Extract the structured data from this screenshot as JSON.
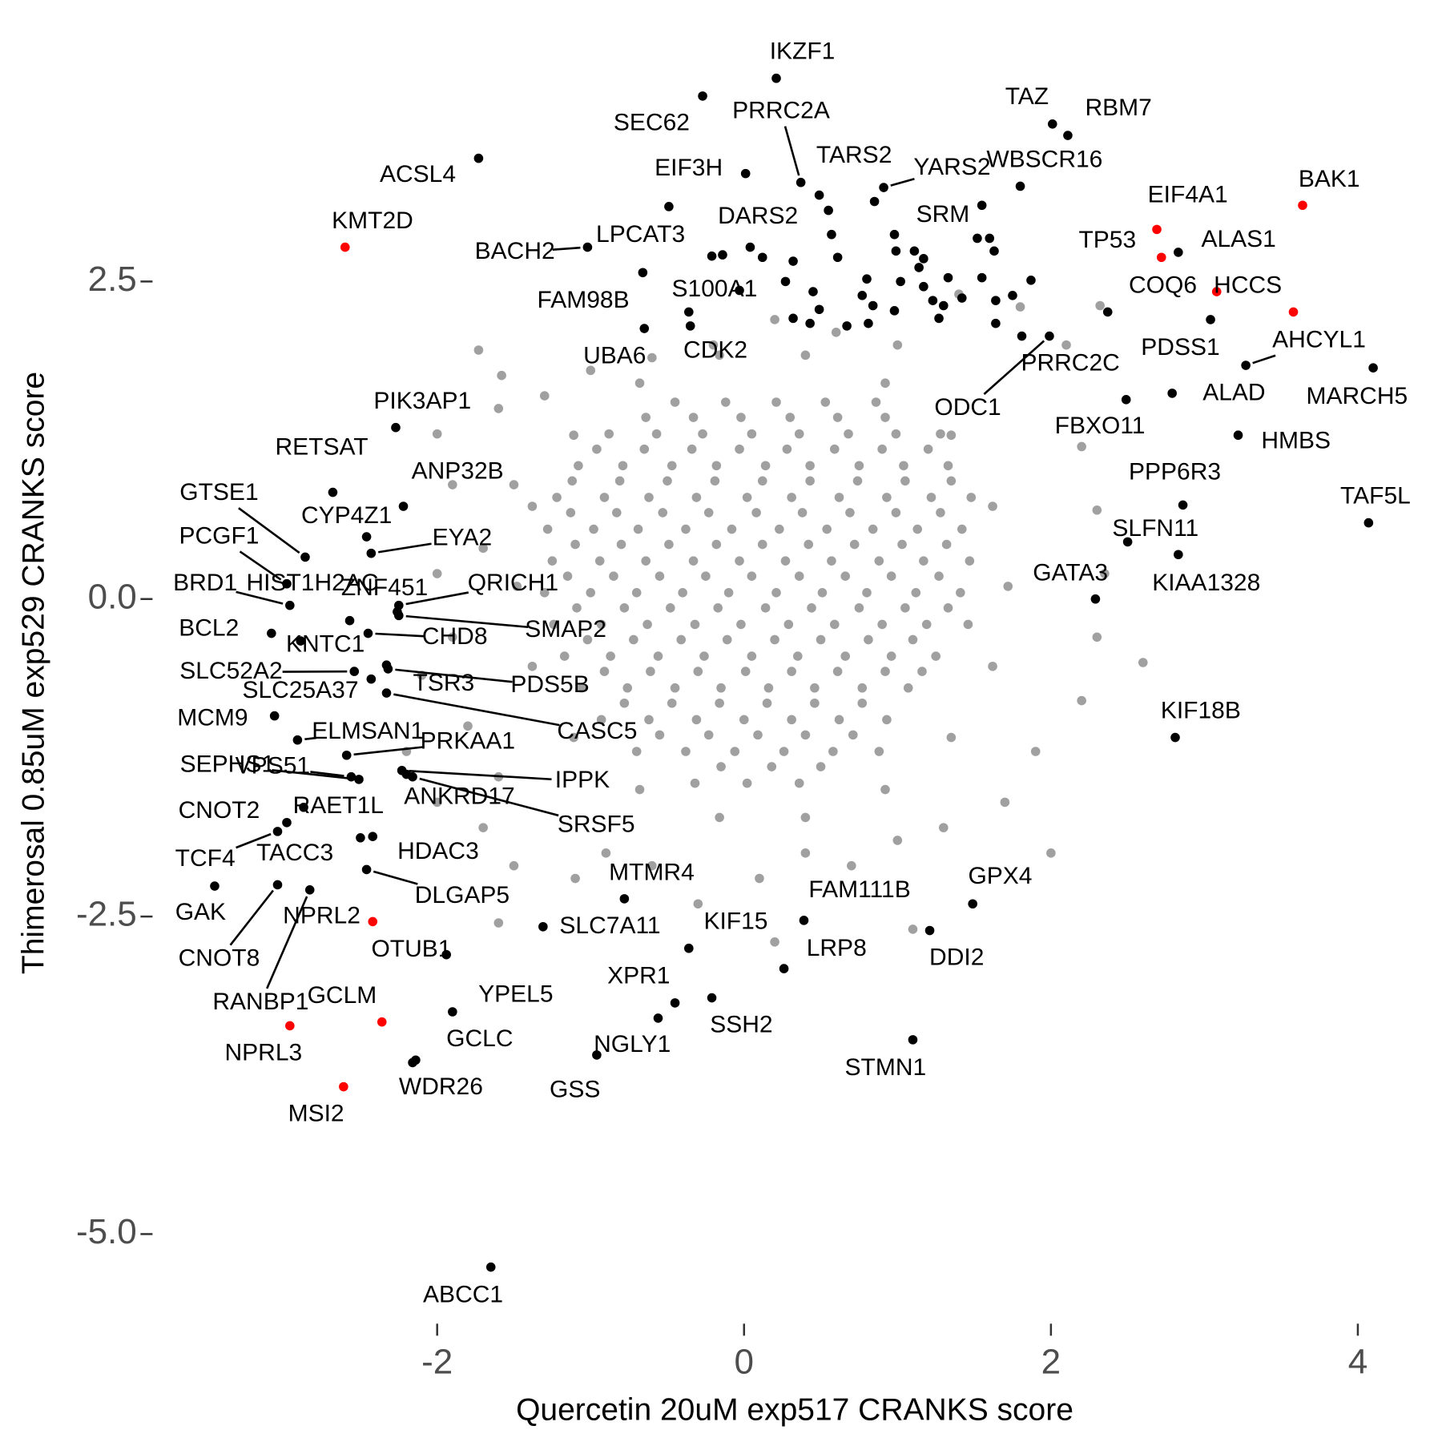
{
  "chart_data": {
    "type": "scatter",
    "xlabel": "Quercetin 20uM exp517 CRANKS score",
    "ylabel": "Thimerosal 0.85uM exp529 CRANKS score",
    "xlim": [
      -3.855,
      4.428
    ],
    "ylim": [
      -5.691,
      4.498
    ],
    "xticks": [
      -2,
      0,
      2,
      4
    ],
    "yticks": [
      {
        "value": 2.5,
        "label": "2.5"
      },
      {
        "value": 0,
        "label": "0.0"
      },
      {
        "value": -2.5,
        "label": "-2.5"
      },
      {
        "value": -5,
        "label": "-5.0"
      }
    ],
    "grid": false,
    "series": [
      {
        "color": "#a0a0a0",
        "x": [
          -1.73,
          -1.58,
          -1.6,
          -2.0,
          -1.9,
          -1.5,
          -1.7,
          -2.0,
          -1.9,
          -2.1,
          -1.8,
          -1.6,
          -1.7,
          -1.5,
          -1.6,
          -1.1,
          -0.9,
          -0.6,
          -0.3,
          0.1,
          0.4,
          0.7,
          1.0,
          1.3,
          1.7,
          1.9,
          2.2,
          2.3,
          2.35,
          2.3,
          2.2,
          2.32,
          2.1,
          1.8,
          1.4,
          1.0,
          0.6,
          0.2,
          -0.2,
          -0.6,
          -1.0,
          -1.3,
          -2.2,
          -2.0,
          2.0,
          1.1,
          0.2,
          2.6,
          1.72,
          1.62,
          1.35,
          0.92,
          0.4,
          -0.16,
          -0.68,
          -1.11,
          -1.38,
          -1.48,
          -1.38,
          -1.11,
          -0.68,
          -0.16,
          0.4,
          0.92,
          1.35,
          1.62,
          -0.45,
          -0.12,
          0.21,
          0.53,
          0.86,
          -0.88,
          -0.57,
          -0.27,
          0.05,
          0.36,
          0.68,
          0.99,
          1.28,
          -1.08,
          -0.79,
          -0.47,
          -0.18,
          0.14,
          0.43,
          0.75,
          1.04,
          1.33,
          -1.22,
          -0.91,
          -0.62,
          -0.31,
          0.02,
          0.31,
          0.62,
          0.93,
          1.22,
          1.48,
          -1.28,
          -0.98,
          -0.69,
          -0.38,
          -0.08,
          0.23,
          0.54,
          0.84,
          1.13,
          1.42,
          -1.25,
          -0.94,
          -0.64,
          -0.33,
          -0.03,
          0.27,
          0.57,
          0.88,
          1.17,
          1.47,
          -1.3,
          -1.0,
          -0.7,
          -0.4,
          -0.1,
          0.21,
          0.51,
          0.8,
          1.12,
          1.41,
          -1.24,
          -0.93,
          -0.63,
          -0.32,
          -0.02,
          0.29,
          0.59,
          0.9,
          1.19,
          1.46,
          -1.17,
          -0.87,
          -0.56,
          -0.26,
          0.05,
          0.35,
          0.66,
          0.96,
          1.25,
          -1.06,
          -0.76,
          -0.45,
          -0.15,
          0.16,
          0.46,
          0.77,
          1.07,
          -0.93,
          -0.62,
          -0.31,
          0.0,
          0.31,
          0.62,
          0.93,
          -0.7,
          -0.38,
          -0.06,
          0.26,
          0.58,
          0.88,
          -0.32,
          0.02,
          0.36,
          -0.64,
          -0.33,
          -0.02,
          0.3,
          0.61,
          0.92,
          -0.96,
          -0.65,
          -0.34,
          -0.03,
          0.28,
          0.59,
          0.9,
          1.2,
          -1.12,
          -0.81,
          -0.5,
          -0.19,
          0.12,
          0.43,
          0.74,
          1.05,
          1.35,
          -1.13,
          -0.83,
          -0.53,
          -0.23,
          0.08,
          0.38,
          0.69,
          0.99,
          1.28,
          -1.1,
          -0.8,
          -0.49,
          -0.18,
          0.12,
          0.42,
          0.72,
          1.03,
          1.32,
          -1.15,
          -0.85,
          -0.55,
          -0.25,
          0.05,
          0.36,
          0.66,
          0.96,
          1.27,
          -1.09,
          -0.78,
          -0.48,
          -0.17,
          0.14,
          0.44,
          0.75,
          1.05,
          1.33,
          -1.02,
          -0.72,
          -0.41,
          -0.11,
          0.2,
          0.5,
          0.81,
          1.1,
          -0.91,
          -0.61,
          -0.3,
          0.01,
          0.31,
          0.61,
          0.92,
          1.16,
          -0.78,
          -0.47,
          -0.16,
          0.15,
          0.46,
          0.77,
          -0.55,
          -0.23,
          0.09,
          0.4,
          0.71,
          -0.15,
          0.18,
          0.5
        ],
        "y": [
          1.96,
          1.76,
          1.5,
          1.3,
          0.9,
          0.9,
          0.4,
          0.2,
          -0.3,
          -0.6,
          -1.0,
          -1.4,
          -1.8,
          -2.1,
          -2.55,
          -2.2,
          -2.0,
          -2.1,
          -2.4,
          -2.2,
          -2.0,
          -2.1,
          -1.9,
          -1.8,
          -1.6,
          -1.2,
          -0.8,
          -0.3,
          0.2,
          0.7,
          1.2,
          2.31,
          2.0,
          2.3,
          2.4,
          2.0,
          2.1,
          2.2,
          2.0,
          1.9,
          1.8,
          1.6,
          -1.2,
          -1.6,
          -2.0,
          -2.6,
          -2.7,
          -0.5,
          0.1,
          0.73,
          1.29,
          1.7,
          1.92,
          1.92,
          1.7,
          1.29,
          0.73,
          0.1,
          -0.53,
          -1.09,
          -1.5,
          -1.72,
          -1.72,
          -1.5,
          -1.09,
          -0.53,
          1.55,
          1.55,
          1.55,
          1.55,
          1.55,
          1.3,
          1.3,
          1.3,
          1.3,
          1.3,
          1.3,
          1.3,
          1.3,
          1.05,
          1.05,
          1.05,
          1.05,
          1.05,
          1.05,
          1.05,
          1.05,
          1.05,
          0.8,
          0.8,
          0.8,
          0.8,
          0.8,
          0.8,
          0.8,
          0.8,
          0.8,
          0.8,
          0.55,
          0.55,
          0.55,
          0.55,
          0.55,
          0.55,
          0.55,
          0.55,
          0.55,
          0.55,
          0.3,
          0.3,
          0.3,
          0.3,
          0.3,
          0.3,
          0.3,
          0.3,
          0.3,
          0.3,
          0.05,
          0.05,
          0.05,
          0.05,
          0.05,
          0.05,
          0.05,
          0.05,
          0.05,
          0.05,
          -0.2,
          -0.2,
          -0.2,
          -0.2,
          -0.2,
          -0.2,
          -0.2,
          -0.2,
          -0.2,
          -0.2,
          -0.45,
          -0.45,
          -0.45,
          -0.45,
          -0.45,
          -0.45,
          -0.45,
          -0.45,
          -0.45,
          -0.7,
          -0.7,
          -0.7,
          -0.7,
          -0.7,
          -0.7,
          -0.7,
          -0.7,
          -0.95,
          -0.95,
          -0.95,
          -0.95,
          -0.95,
          -0.95,
          -0.95,
          -1.2,
          -1.2,
          -1.2,
          -1.2,
          -1.2,
          -1.2,
          -1.45,
          -1.45,
          -1.45,
          1.43,
          1.43,
          1.43,
          1.43,
          1.43,
          1.43,
          1.18,
          1.18,
          1.18,
          1.18,
          1.18,
          1.18,
          1.18,
          1.18,
          0.93,
          0.93,
          0.93,
          0.93,
          0.93,
          0.93,
          0.93,
          0.93,
          0.93,
          0.68,
          0.68,
          0.68,
          0.68,
          0.68,
          0.68,
          0.68,
          0.68,
          0.68,
          0.43,
          0.43,
          0.43,
          0.43,
          0.43,
          0.43,
          0.43,
          0.43,
          0.43,
          0.18,
          0.18,
          0.18,
          0.18,
          0.18,
          0.18,
          0.18,
          0.18,
          0.18,
          -0.07,
          -0.07,
          -0.07,
          -0.07,
          -0.07,
          -0.07,
          -0.07,
          -0.07,
          -0.07,
          -0.32,
          -0.32,
          -0.32,
          -0.32,
          -0.32,
          -0.32,
          -0.32,
          -0.32,
          -0.57,
          -0.57,
          -0.57,
          -0.57,
          -0.57,
          -0.57,
          -0.57,
          -0.57,
          -0.82,
          -0.82,
          -0.82,
          -0.82,
          -0.82,
          -0.82,
          -1.07,
          -1.07,
          -1.07,
          -1.07,
          -1.07,
          -1.32,
          -1.32,
          -1.32
        ]
      },
      {
        "color": "#000000",
        "x": [
          -0.21,
          -0.14,
          0.12,
          0.27,
          0.32,
          0.45,
          0.55,
          0.57,
          0.61,
          0.8,
          0.77,
          0.81,
          0.67,
          0.99,
          1.02,
          1.14,
          1.17,
          1.33,
          1.3,
          1.42,
          1.52,
          1.55,
          1.63,
          1.64,
          1.75,
          1.87,
          1.81,
          1.55,
          1.27,
          0.32,
          0.43,
          0.98,
          0.49,
          1.17,
          1.6,
          -0.36,
          0.85,
          1.11,
          1.23,
          1.64,
          0.84
        ],
        "y": [
          2.7,
          2.71,
          2.69,
          2.5,
          2.66,
          2.42,
          3.06,
          2.87,
          2.69,
          2.52,
          2.39,
          2.17,
          2.15,
          2.74,
          2.5,
          2.61,
          2.68,
          2.53,
          2.31,
          2.37,
          2.84,
          2.53,
          2.74,
          2.35,
          2.39,
          2.51,
          2.07,
          3.1,
          2.21,
          2.21,
          2.17,
          2.27,
          2.28,
          2.46,
          2.84,
          2.26,
          3.13,
          2.74,
          2.35,
          2.17,
          2.31
        ]
      },
      {
        "color": "#000000",
        "labels": [
          "IKZF1",
          "SEC62",
          "PRRC2A",
          "TAZ",
          "RBM7",
          "ACSL4",
          "EIF3H",
          "TARS2",
          "YARS2",
          "WBSCR16",
          "DARS2",
          "SRM",
          "ALAS1",
          "BACH2",
          "LPCAT3",
          "FAM98B",
          "S100A1",
          "UBA6",
          "CDK2",
          "PDSS1",
          "AHCYL1",
          "PRRC2C",
          "MARCH5",
          "ALAD",
          "ODC1",
          "PIK3AP1",
          "FBXO11",
          "HMBS",
          "RETSAT",
          "ANP32B",
          "PPP6R3",
          "TAF5L",
          "GTSE1",
          "CYP4Z1",
          "PCGF1",
          "EYA2",
          "SLFN11",
          "KIAA1328",
          "GATA3",
          "BRD1",
          "HIST1H2AC",
          "ZNF451",
          "QRICH1",
          "SMAP2",
          "BCL2",
          "CHD8",
          "KNTC1",
          "SLC52A2",
          "SLC25A37",
          "TSR3",
          "PDS5B",
          "CASC5",
          "MCM9",
          "ELMSAN1",
          "PRKAA1",
          "SEPHS1",
          "VPS51",
          "IPPK",
          "ANKRD17",
          "SRSF5",
          "CNOT2",
          "RAET1L",
          "HDAC3",
          "TACC3",
          "TCF4",
          "DLGAP5",
          "GAK",
          "CNOT8",
          "RANBP1",
          "OTUB1",
          "SLC7A11",
          "MTMR4",
          "KIF15",
          "FAM111B",
          "GPX4",
          "DDI2",
          "LRP8",
          "XPR1",
          "SSH2",
          "YPEL5",
          "NGLY1",
          "GCLC",
          "WDR26",
          "STMN1",
          "GSS",
          "ABCC1",
          "KIF18B"
        ],
        "x": [
          0.21,
          -0.27,
          0.37,
          2.01,
          2.11,
          -1.73,
          0.01,
          0.49,
          0.91,
          1.8,
          0.04,
          0.98,
          2.83,
          -1.02,
          -0.49,
          -0.66,
          -0.03,
          -0.65,
          -0.35,
          3.04,
          3.27,
          2.37,
          4.1,
          2.79,
          1.99,
          -2.27,
          2.49,
          3.22,
          -2.68,
          -2.22,
          2.86,
          4.07,
          -2.86,
          -2.46,
          -2.98,
          -2.43,
          2.5,
          2.83,
          2.29,
          -2.96,
          -2.57,
          -2.26,
          -2.25,
          -2.25,
          -3.08,
          -2.45,
          -2.89,
          -2.54,
          -2.43,
          -2.33,
          -2.32,
          -2.33,
          -3.06,
          -2.91,
          -2.59,
          -2.51,
          -2.56,
          -2.23,
          -2.2,
          -2.16,
          -2.98,
          -2.87,
          -2.42,
          -2.5,
          -3.04,
          -2.46,
          -3.45,
          -3.04,
          -2.83,
          -1.94,
          -1.31,
          -0.78,
          -0.36,
          0.39,
          1.49,
          1.21,
          0.26,
          -0.45,
          -0.21,
          -1.9,
          -0.56,
          -2.14,
          -2.16,
          1.1,
          -0.96,
          -1.65,
          2.81
        ],
        "y": [
          4.1,
          3.96,
          3.28,
          3.74,
          3.65,
          3.47,
          3.35,
          3.18,
          3.24,
          3.25,
          2.77,
          2.87,
          2.73,
          2.77,
          3.09,
          2.57,
          2.43,
          2.13,
          2.15,
          2.2,
          1.84,
          2.26,
          1.82,
          1.62,
          2.07,
          1.35,
          1.57,
          1.29,
          0.84,
          0.73,
          0.74,
          0.6,
          0.33,
          0.49,
          0.12,
          0.36,
          0.45,
          0.35,
          0.0,
          -0.05,
          -0.17,
          -0.1,
          -0.05,
          -0.13,
          -0.27,
          -0.27,
          -0.33,
          -0.57,
          -0.63,
          -0.52,
          -0.55,
          -0.74,
          -0.92,
          -1.11,
          -1.23,
          -1.42,
          -1.4,
          -1.35,
          -1.38,
          -1.4,
          -1.76,
          -1.64,
          -1.87,
          -1.88,
          -1.83,
          -2.13,
          -2.26,
          -2.25,
          -2.29,
          -2.8,
          -2.58,
          -2.36,
          -2.75,
          -2.53,
          -2.4,
          -2.61,
          -2.91,
          -3.18,
          -3.14,
          -3.25,
          -3.3,
          -3.63,
          -3.65,
          -3.47,
          -3.59,
          -5.26,
          -1.09
        ]
      },
      {
        "color": "#ff0000",
        "labels": [
          "EIF4A1",
          "BAK1",
          "KMT2D",
          "TP53",
          "COQ6",
          "HCCS",
          "NPRL2",
          "GCLM",
          "NPRL3",
          "MSI2"
        ],
        "x": [
          2.69,
          3.64,
          -2.6,
          2.72,
          3.08,
          3.58,
          -2.42,
          -2.36,
          -2.96,
          -2.61
        ],
        "y": [
          2.91,
          3.1,
          2.77,
          2.69,
          2.42,
          2.26,
          -2.54,
          -3.33,
          -3.36,
          -3.84
        ]
      }
    ]
  }
}
